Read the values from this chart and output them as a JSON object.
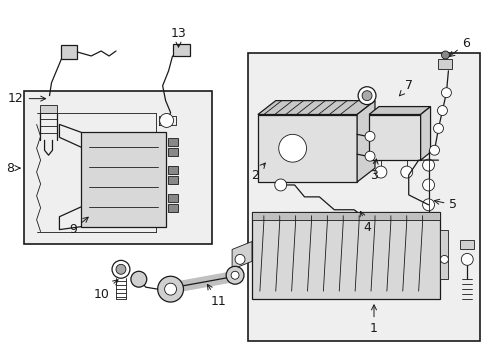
{
  "bg": "#ffffff",
  "lc": "#1a1a1a",
  "gray_fill": "#d8d8d8",
  "light_fill": "#efefef",
  "font_size": 8,
  "fig_w": 4.89,
  "fig_h": 3.6,
  "dpi": 100
}
